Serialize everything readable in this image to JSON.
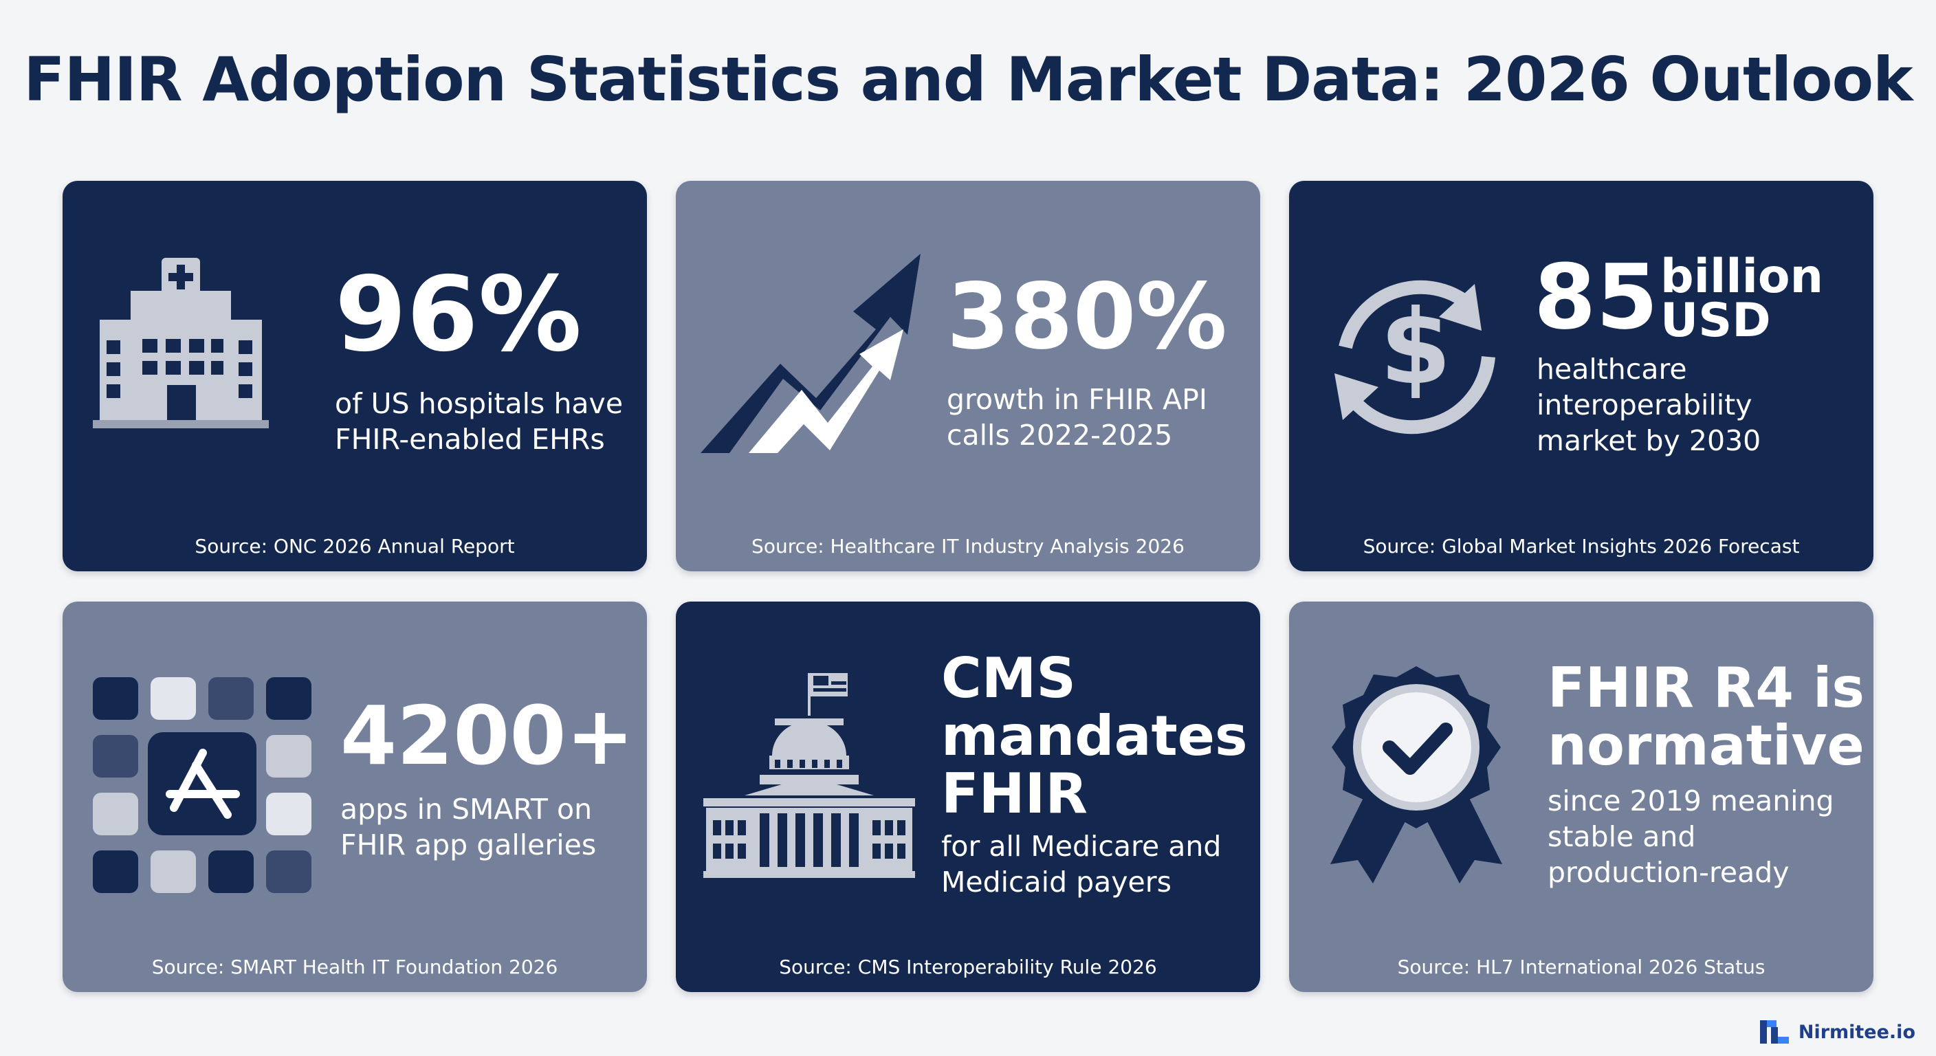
{
  "title": "FHIR Adoption Statistics and Market Data: 2026 Outlook",
  "colors": {
    "dark_navy": "#14284f",
    "slate": "#75819a",
    "icon_light": "#c8ccd6",
    "title": "#13284f"
  },
  "cards": [
    {
      "theme": "dark",
      "icon": "hospital-icon",
      "stat": "96%",
      "description_lines": [
        "of US hospitals have",
        "FHIR-enabled EHRs"
      ],
      "source": "Source: ONC 2026 Annual Report"
    },
    {
      "theme": "light",
      "icon": "trend-arrow-icon",
      "stat": "380%",
      "description_lines": [
        "growth in FHIR API",
        "calls 2022-2025"
      ],
      "source": "Source: Healthcare IT Industry Analysis 2026"
    },
    {
      "theme": "dark",
      "icon": "dollar-cycle-icon",
      "stat": "85",
      "stat_unit_lines": [
        "billion",
        "USD"
      ],
      "description_lines": [
        "healthcare",
        "interoperability",
        "market by 2030"
      ],
      "source": "Source: Global Market Insights 2026 Forecast"
    },
    {
      "theme": "light",
      "icon": "app-grid-icon",
      "stat": "4200+",
      "description_lines": [
        "apps in SMART on",
        "FHIR app galleries"
      ],
      "source": "Source: SMART Health IT Foundation 2026"
    },
    {
      "theme": "dark",
      "icon": "capitol-building-icon",
      "stat_lines": [
        "CMS",
        "mandates",
        "FHIR"
      ],
      "description_lines": [
        "for all Medicare and",
        "Medicaid payers"
      ],
      "source": "Source: CMS Interoperability Rule 2026"
    },
    {
      "theme": "light",
      "icon": "award-badge-icon",
      "stat_lines": [
        "FHIR R4 is",
        "normative"
      ],
      "description_lines": [
        "since 2019 meaning",
        "stable and",
        "production-ready"
      ],
      "source": "Source: HL7 International 2026 Status"
    }
  ],
  "brand": {
    "name": "Nirmitee.io",
    "icon": "nirmitee-logo-icon"
  }
}
